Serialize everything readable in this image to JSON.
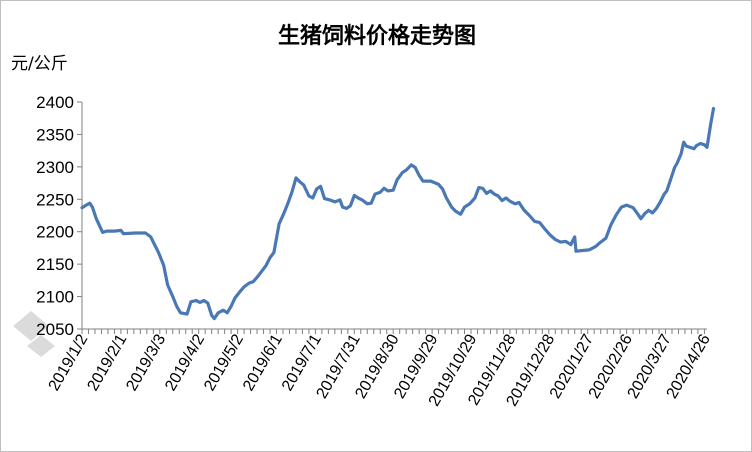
{
  "colors": {
    "series": "#4a78b4",
    "axis": "#808080",
    "text": "#000000"
  },
  "chart_data": {
    "type": "line",
    "title": "生猪饲料价格走势图",
    "ylabel": "元/公斤",
    "ylim": [
      2050,
      2400
    ],
    "yticks": [
      2050,
      2100,
      2150,
      2200,
      2250,
      2300,
      2350,
      2400
    ],
    "xlabels": [
      "2019/1/2",
      "2019/2/1",
      "2019/3/3",
      "2019/4/2",
      "2019/5/2",
      "2019/6/1",
      "2019/7/1",
      "2019/7/31",
      "2019/8/30",
      "2019/9/29",
      "2019/10/29",
      "2019/11/28",
      "2019/12/28",
      "2020/1/27",
      "2020/2/26",
      "2020/3/27",
      "2020/4/26"
    ],
    "x_range": [
      "2019-01-02",
      "2020-04-28"
    ],
    "grid": false,
    "legend": "none",
    "series": [
      {
        "points": [
          [
            "2019-01-02",
            2237
          ],
          [
            "2019-01-06",
            2242
          ],
          [
            "2019-01-08",
            2244
          ],
          [
            "2019-01-10",
            2238
          ],
          [
            "2019-01-13",
            2220
          ],
          [
            "2019-01-16",
            2207
          ],
          [
            "2019-01-18",
            2199
          ],
          [
            "2019-01-21",
            2201
          ],
          [
            "2019-01-27",
            2201
          ],
          [
            "2019-02-01",
            2202
          ],
          [
            "2019-02-03",
            2197
          ],
          [
            "2019-02-12",
            2198
          ],
          [
            "2019-02-20",
            2198
          ],
          [
            "2019-02-24",
            2192
          ],
          [
            "2019-02-27",
            2180
          ],
          [
            "2019-03-02",
            2168
          ],
          [
            "2019-03-06",
            2148
          ],
          [
            "2019-03-09",
            2118
          ],
          [
            "2019-03-13",
            2100
          ],
          [
            "2019-03-16",
            2085
          ],
          [
            "2019-03-19",
            2075
          ],
          [
            "2019-03-24",
            2073
          ],
          [
            "2019-03-27",
            2092
          ],
          [
            "2019-03-31",
            2094
          ],
          [
            "2019-04-03",
            2091
          ],
          [
            "2019-04-06",
            2094
          ],
          [
            "2019-04-09",
            2090
          ],
          [
            "2019-04-12",
            2071
          ],
          [
            "2019-04-14",
            2066
          ],
          [
            "2019-04-17",
            2075
          ],
          [
            "2019-04-21",
            2079
          ],
          [
            "2019-04-24",
            2075
          ],
          [
            "2019-04-27",
            2085
          ],
          [
            "2019-04-30",
            2098
          ],
          [
            "2019-05-04",
            2108
          ],
          [
            "2019-05-07",
            2115
          ],
          [
            "2019-05-11",
            2121
          ],
          [
            "2019-05-14",
            2123
          ],
          [
            "2019-05-18",
            2132
          ],
          [
            "2019-05-21",
            2140
          ],
          [
            "2019-05-24",
            2148
          ],
          [
            "2019-05-27",
            2160
          ],
          [
            "2019-05-30",
            2168
          ],
          [
            "2019-06-03",
            2212
          ],
          [
            "2019-06-07",
            2230
          ],
          [
            "2019-06-10",
            2245
          ],
          [
            "2019-06-13",
            2262
          ],
          [
            "2019-06-16",
            2283
          ],
          [
            "2019-06-19",
            2277
          ],
          [
            "2019-06-22",
            2272
          ],
          [
            "2019-06-26",
            2255
          ],
          [
            "2019-06-29",
            2252
          ],
          [
            "2019-07-02",
            2266
          ],
          [
            "2019-07-05",
            2270
          ],
          [
            "2019-07-08",
            2251
          ],
          [
            "2019-07-12",
            2249
          ],
          [
            "2019-07-16",
            2246
          ],
          [
            "2019-07-20",
            2249
          ],
          [
            "2019-07-22",
            2238
          ],
          [
            "2019-07-25",
            2236
          ],
          [
            "2019-07-28",
            2240
          ],
          [
            "2019-07-31",
            2256
          ],
          [
            "2019-08-03",
            2252
          ],
          [
            "2019-08-06",
            2249
          ],
          [
            "2019-08-10",
            2243
          ],
          [
            "2019-08-13",
            2244
          ],
          [
            "2019-08-16",
            2258
          ],
          [
            "2019-08-20",
            2261
          ],
          [
            "2019-08-23",
            2267
          ],
          [
            "2019-08-26",
            2263
          ],
          [
            "2019-08-30",
            2264
          ],
          [
            "2019-09-02",
            2280
          ],
          [
            "2019-09-06",
            2291
          ],
          [
            "2019-09-09",
            2295
          ],
          [
            "2019-09-13",
            2303
          ],
          [
            "2019-09-16",
            2299
          ],
          [
            "2019-09-19",
            2287
          ],
          [
            "2019-09-22",
            2278
          ],
          [
            "2019-09-28",
            2278
          ],
          [
            "2019-10-04",
            2273
          ],
          [
            "2019-10-07",
            2266
          ],
          [
            "2019-10-10",
            2252
          ],
          [
            "2019-10-14",
            2238
          ],
          [
            "2019-10-17",
            2232
          ],
          [
            "2019-10-21",
            2227
          ],
          [
            "2019-10-24",
            2238
          ],
          [
            "2019-10-28",
            2243
          ],
          [
            "2019-11-01",
            2252
          ],
          [
            "2019-11-04",
            2268
          ],
          [
            "2019-11-07",
            2267
          ],
          [
            "2019-11-10",
            2259
          ],
          [
            "2019-11-13",
            2263
          ],
          [
            "2019-11-16",
            2258
          ],
          [
            "2019-11-19",
            2255
          ],
          [
            "2019-11-22",
            2248
          ],
          [
            "2019-11-25",
            2252
          ],
          [
            "2019-11-28",
            2247
          ],
          [
            "2019-12-02",
            2243
          ],
          [
            "2019-12-05",
            2245
          ],
          [
            "2019-12-09",
            2233
          ],
          [
            "2019-12-13",
            2225
          ],
          [
            "2019-12-17",
            2216
          ],
          [
            "2019-12-21",
            2214
          ],
          [
            "2019-12-25",
            2204
          ],
          [
            "2019-12-29",
            2195
          ],
          [
            "2020-01-02",
            2188
          ],
          [
            "2020-01-06",
            2184
          ],
          [
            "2020-01-10",
            2185
          ],
          [
            "2020-01-14",
            2180
          ],
          [
            "2020-01-17",
            2192
          ],
          [
            "2020-01-18",
            2170
          ],
          [
            "2020-01-23",
            2171
          ],
          [
            "2020-01-28",
            2172
          ],
          [
            "2020-02-02",
            2177
          ],
          [
            "2020-02-06",
            2184
          ],
          [
            "2020-02-10",
            2190
          ],
          [
            "2020-02-14",
            2211
          ],
          [
            "2020-02-18",
            2226
          ],
          [
            "2020-02-22",
            2238
          ],
          [
            "2020-02-26",
            2241
          ],
          [
            "2020-03-02",
            2237
          ],
          [
            "2020-03-05",
            2229
          ],
          [
            "2020-03-08",
            2220
          ],
          [
            "2020-03-11",
            2228
          ],
          [
            "2020-03-14",
            2233
          ],
          [
            "2020-03-17",
            2229
          ],
          [
            "2020-03-20",
            2236
          ],
          [
            "2020-03-23",
            2246
          ],
          [
            "2020-03-26",
            2258
          ],
          [
            "2020-03-28",
            2263
          ],
          [
            "2020-03-31",
            2281
          ],
          [
            "2020-04-03",
            2299
          ],
          [
            "2020-04-05",
            2306
          ],
          [
            "2020-04-08",
            2320
          ],
          [
            "2020-04-10",
            2338
          ],
          [
            "2020-04-12",
            2332
          ],
          [
            "2020-04-15",
            2330
          ],
          [
            "2020-04-18",
            2328
          ],
          [
            "2020-04-20",
            2333
          ],
          [
            "2020-04-23",
            2336
          ],
          [
            "2020-04-26",
            2334
          ],
          [
            "2020-04-28",
            2330
          ],
          [
            "2020-05-01",
            2368
          ],
          [
            "2020-05-03",
            2390
          ]
        ]
      }
    ]
  }
}
